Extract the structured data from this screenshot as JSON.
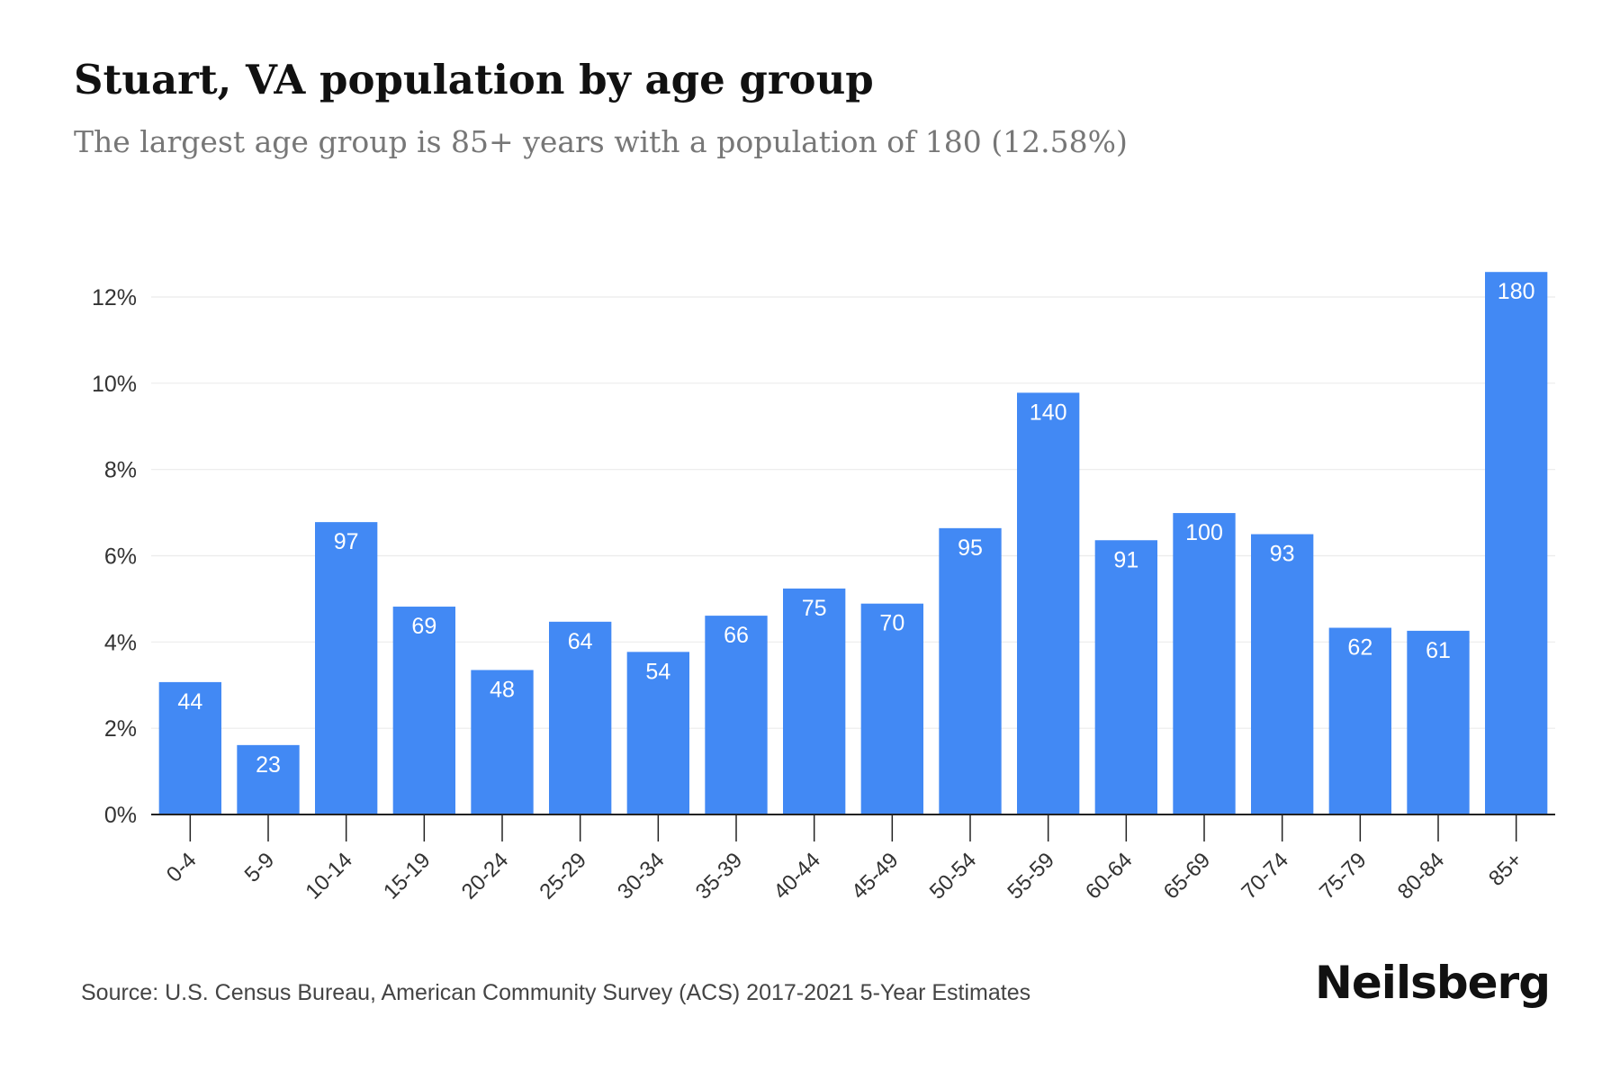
{
  "header": {
    "title": "Stuart, VA population by age group",
    "subtitle": "The largest age group is 85+ years with a population of 180 (12.58%)"
  },
  "footer": {
    "source": "Source: U.S. Census Bureau, American Community Survey (ACS) 2017-2021 5-Year Estimates",
    "brand": "Neilsberg"
  },
  "chart_data": {
    "type": "bar",
    "title": "Stuart, VA population by age group",
    "subtitle": "The largest age group is 85+ years with a population of 180 (12.58%)",
    "xlabel": "",
    "ylabel": "",
    "categories": [
      "0-4",
      "5-9",
      "10-14",
      "15-19",
      "20-24",
      "25-29",
      "30-34",
      "35-39",
      "40-44",
      "45-49",
      "50-54",
      "55-59",
      "60-64",
      "65-69",
      "70-74",
      "75-79",
      "80-84",
      "85+"
    ],
    "values": [
      3.07,
      1.61,
      6.78,
      4.82,
      3.35,
      4.47,
      3.77,
      4.61,
      5.24,
      4.89,
      6.64,
      9.78,
      6.36,
      6.99,
      6.5,
      4.33,
      4.26,
      12.58
    ],
    "data_labels": [
      "44",
      "23",
      "97",
      "69",
      "48",
      "64",
      "54",
      "66",
      "75",
      "70",
      "95",
      "140",
      "91",
      "100",
      "93",
      "62",
      "61",
      "180"
    ],
    "ylim": [
      0,
      12
    ],
    "yticks": [
      0,
      2,
      4,
      6,
      8,
      10,
      12
    ],
    "ytick_labels": [
      "0%",
      "2%",
      "4%",
      "6%",
      "8%",
      "10%",
      "12%"
    ],
    "grid": true,
    "legend": "none",
    "colors": {
      "bar": "#4289f4",
      "grid": "#ebebeb",
      "axis": "#222222",
      "label": "#ffffff",
      "tick": "#333333"
    }
  }
}
